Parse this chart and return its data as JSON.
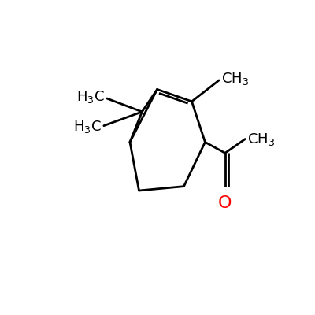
{
  "background_color": "#ffffff",
  "bond_color": "#000000",
  "red_color": "#ff0000",
  "line_width": 2.0,
  "font_size": 13,
  "fig_width": 4.0,
  "fig_height": 4.0,
  "dpi": 100
}
